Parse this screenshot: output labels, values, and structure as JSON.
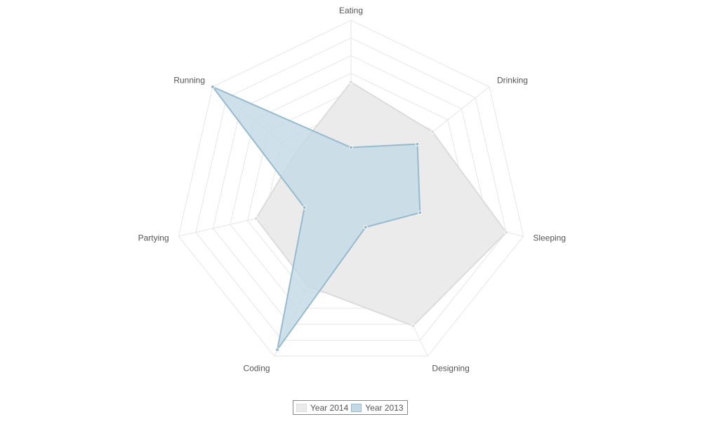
{
  "chart_data": {
    "type": "radar",
    "categories": [
      "Eating",
      "Drinking",
      "Sleeping",
      "Designing",
      "Coding",
      "Partying",
      "Running"
    ],
    "rlim": [
      0,
      100
    ],
    "grid_levels": 5,
    "series": [
      {
        "name": "Year 2014",
        "values": [
          65,
          59,
          90,
          81,
          56,
          55,
          40
        ],
        "fill": "#ebebeb",
        "stroke": "#dcdcdc",
        "point": "#dcdcdc"
      },
      {
        "name": "Year 2013",
        "values": [
          28,
          48,
          40,
          19,
          96,
          27,
          100
        ],
        "fill": "#c3d9e5",
        "stroke": "#97bbcd",
        "point": "#97bbcd"
      }
    ],
    "grid_color": "#e6e6e6",
    "legend_position": "bottom"
  }
}
